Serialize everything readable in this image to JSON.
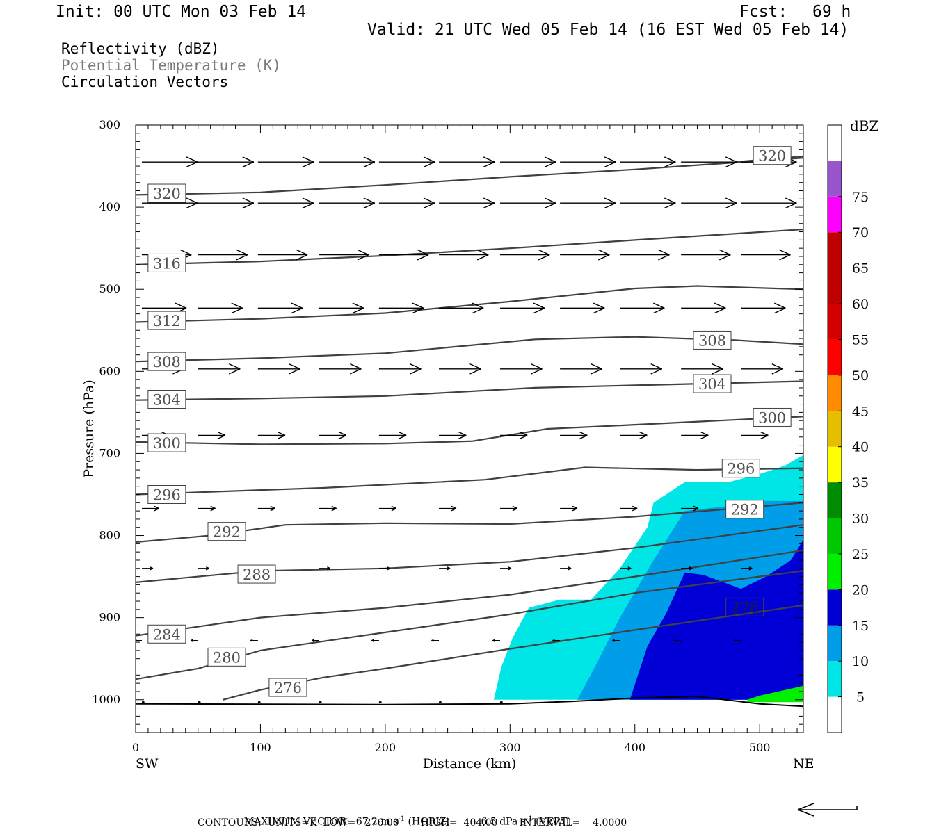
{
  "header": {
    "init": "Init: 00 UTC Mon 03 Feb 14",
    "fcst_label": "Fcst:",
    "fcst_value": "69 h",
    "valid": "Valid: 21 UTC Wed 05 Feb 14 (16 EST Wed 05 Feb 14)"
  },
  "fields": {
    "reflectivity": "Reflectivity (dBZ)",
    "theta": "Potential Temperature (K)",
    "vectors": "Circulation Vectors"
  },
  "footer": {
    "max_vector_label": "MAXIMUM VECTOR:",
    "horiz_value": "67.2",
    "horiz_units": "m s",
    "horiz_note": "(HORIZ)",
    "vert_value": "6.5",
    "vert_units": "dPa s",
    "vert_note": "(VERT)",
    "exponent": "-1",
    "contours": "CONTOURS:  UNITS=K  LOW=   276.00       HIGH=  404.00       INTERVAL=    4.0000"
  },
  "colors": {
    "dbz_5": "#00e6e6",
    "dbz_10": "#009ee8",
    "dbz_15": "#0000d6",
    "dbz_20": "#00f000",
    "dbz_25": "#00c800",
    "dbz_30": "#008c00",
    "dbz_35": "#ffff00",
    "dbz_40": "#e6be00",
    "dbz_45": "#ff8c00",
    "dbz_50": "#ff0000",
    "dbz_55": "#d60000",
    "dbz_60": "#c00000",
    "dbz_65": "#ff00ff",
    "dbz_75": "#9955cc",
    "contour": "#404040"
  },
  "chart_data": {
    "type": "cross-section",
    "xlabel": "Distance (km)",
    "ylabel": "Pressure (hPa)",
    "xlim": [
      0,
      535
    ],
    "ylim": [
      1040,
      300
    ],
    "x_ticks": [
      0,
      100,
      200,
      300,
      400,
      500
    ],
    "y_ticks": [
      300,
      400,
      500,
      600,
      700,
      800,
      900,
      1000
    ],
    "x_end_labels": {
      "left": "SW",
      "right": "NE"
    },
    "colorbar": {
      "title": "dBZ",
      "labels": [
        "5",
        "10",
        "15",
        "20",
        "25",
        "30",
        "35",
        "40",
        "45",
        "50",
        "55",
        "60",
        "65",
        "70",
        "75"
      ],
      "levels": [
        0,
        5,
        10,
        15,
        20,
        25,
        30,
        35,
        40,
        45,
        50,
        55,
        60,
        65,
        70,
        75,
        80
      ],
      "bin_colors": [
        "#ffffff",
        "#00e6e6",
        "#009ee8",
        "#0000d6",
        "#00f000",
        "#00c800",
        "#008c00",
        "#ffff00",
        "#e6be00",
        "#ff8c00",
        "#ff0000",
        "#d60000",
        "#c00000",
        "#c00000",
        "#ff00ff",
        "#9955cc",
        "#ffffff"
      ]
    },
    "reflectivity_regions": [
      {
        "dbz": 5,
        "points": [
          [
            287,
            1000
          ],
          [
            293,
            960
          ],
          [
            302,
            925
          ],
          [
            315,
            888
          ],
          [
            340,
            878
          ],
          [
            365,
            878
          ],
          [
            388,
            840
          ],
          [
            410,
            790
          ],
          [
            415,
            760
          ],
          [
            440,
            735
          ],
          [
            475,
            735
          ],
          [
            500,
            725
          ],
          [
            520,
            715
          ],
          [
            535,
            702
          ],
          [
            535,
            1000
          ],
          [
            287,
            1000
          ]
        ]
      },
      {
        "dbz": 10,
        "points": [
          [
            354,
            1000
          ],
          [
            368,
            960
          ],
          [
            388,
            900
          ],
          [
            415,
            830
          ],
          [
            440,
            770
          ],
          [
            470,
            765
          ],
          [
            500,
            758
          ],
          [
            535,
            758
          ],
          [
            535,
            1000
          ],
          [
            354,
            1000
          ]
        ]
      },
      {
        "dbz": 15,
        "points": [
          [
            396,
            1000
          ],
          [
            410,
            935
          ],
          [
            425,
            895
          ],
          [
            440,
            845
          ],
          [
            455,
            848
          ],
          [
            485,
            865
          ],
          [
            505,
            850
          ],
          [
            525,
            830
          ],
          [
            535,
            805
          ],
          [
            535,
            1000
          ],
          [
            396,
            1000
          ]
        ]
      },
      {
        "dbz": 20,
        "points": [
          [
            490,
            1000
          ],
          [
            500,
            995
          ],
          [
            515,
            990
          ],
          [
            535,
            983
          ],
          [
            535,
            1003
          ],
          [
            490,
            1003
          ]
        ]
      }
    ],
    "theta_contours": [
      {
        "value": 320,
        "points": [
          [
            0,
            385
          ],
          [
            100,
            382
          ],
          [
            200,
            373
          ],
          [
            300,
            363
          ],
          [
            400,
            354
          ],
          [
            535,
            340
          ]
        ],
        "label_at": [
          25,
          383
        ]
      },
      {
        "value": 320,
        "points": [
          [
            480,
            345
          ],
          [
            535,
            338
          ]
        ],
        "label_at": [
          510,
          337
        ]
      },
      {
        "value": 316,
        "points": [
          [
            0,
            470
          ],
          [
            100,
            466
          ],
          [
            200,
            459
          ],
          [
            300,
            450
          ],
          [
            400,
            440
          ],
          [
            535,
            427
          ]
        ],
        "label_at": [
          25,
          468
        ]
      },
      {
        "value": 312,
        "points": [
          [
            0,
            540
          ],
          [
            100,
            536
          ],
          [
            200,
            529
          ],
          [
            300,
            515
          ],
          [
            400,
            499
          ],
          [
            450,
            496
          ],
          [
            535,
            500
          ]
        ],
        "label_at": [
          25,
          538
        ]
      },
      {
        "value": 308,
        "points": [
          [
            0,
            588
          ],
          [
            100,
            584
          ],
          [
            200,
            578
          ],
          [
            320,
            561
          ],
          [
            400,
            558
          ],
          [
            480,
            562
          ],
          [
            535,
            567
          ]
        ],
        "label_at": [
          25,
          588
        ],
        "label2_at": [
          462,
          562
        ]
      },
      {
        "value": 304,
        "points": [
          [
            0,
            635
          ],
          [
            100,
            633
          ],
          [
            200,
            630
          ],
          [
            320,
            620
          ],
          [
            400,
            617
          ],
          [
            535,
            612
          ]
        ],
        "label_at": [
          25,
          634
        ],
        "label2_at": [
          462,
          615
        ]
      },
      {
        "value": 300,
        "points": [
          [
            0,
            686
          ],
          [
            100,
            689
          ],
          [
            200,
            688
          ],
          [
            270,
            685
          ],
          [
            330,
            670
          ],
          [
            400,
            665
          ],
          [
            535,
            655
          ]
        ],
        "label_at": [
          25,
          687
        ],
        "label2_at": [
          510,
          656
        ]
      },
      {
        "value": 296,
        "points": [
          [
            0,
            750
          ],
          [
            150,
            742
          ],
          [
            280,
            732
          ],
          [
            360,
            717
          ],
          [
            450,
            720
          ],
          [
            535,
            718
          ]
        ],
        "label_at": [
          25,
          750
        ],
        "label2_at": [
          485,
          718
        ]
      },
      {
        "value": 292,
        "points": [
          [
            0,
            808
          ],
          [
            60,
            800
          ],
          [
            120,
            787
          ],
          [
            200,
            785
          ],
          [
            300,
            786
          ],
          [
            400,
            777
          ],
          [
            535,
            760
          ]
        ],
        "label_at": [
          73,
          795
        ],
        "label2_at": [
          488,
          768
        ]
      },
      {
        "value": 288,
        "points": [
          [
            0,
            857
          ],
          [
            100,
            843
          ],
          [
            200,
            840
          ],
          [
            300,
            832
          ],
          [
            400,
            815
          ],
          [
            535,
            787
          ]
        ],
        "label_at": [
          97,
          847
        ]
      },
      {
        "value": 284,
        "points": [
          [
            0,
            922
          ],
          [
            100,
            900
          ],
          [
            200,
            888
          ],
          [
            300,
            872
          ],
          [
            400,
            850
          ],
          [
            535,
            818
          ]
        ],
        "label_at": [
          25,
          920
        ]
      },
      {
        "value": 280,
        "points": [
          [
            0,
            975
          ],
          [
            50,
            962
          ],
          [
            100,
            940
          ],
          [
            200,
            918
          ],
          [
            300,
            896
          ],
          [
            400,
            870
          ],
          [
            535,
            843
          ]
        ],
        "label_at": [
          73,
          948
        ]
      },
      {
        "value": 276,
        "points": [
          [
            70,
            1000
          ],
          [
            100,
            988
          ],
          [
            150,
            973
          ],
          [
            200,
            962
          ],
          [
            300,
            938
          ],
          [
            400,
            915
          ],
          [
            535,
            885
          ]
        ],
        "label_at": [
          122,
          985
        ],
        "label2_at": [
          488,
          887
        ]
      }
    ],
    "ground_line": [
      [
        0,
        1005
      ],
      [
        200,
        1006
      ],
      [
        300,
        1005
      ],
      [
        350,
        1002
      ],
      [
        400,
        998
      ],
      [
        450,
        996
      ],
      [
        500,
        1005
      ],
      [
        535,
        1008
      ]
    ],
    "vectors": [
      {
        "pressure": 345,
        "x": [
          5,
          50,
          98,
          147,
          195,
          243,
          292,
          340,
          388,
          437,
          485
        ],
        "u": 45,
        "w": 0
      },
      {
        "pressure": 395,
        "x": [
          5,
          50,
          98,
          147,
          195,
          243,
          292,
          340,
          388,
          437,
          485
        ],
        "u": 45,
        "w": 0
      },
      {
        "pressure": 458,
        "x": [
          5,
          50,
          98,
          147,
          195,
          243,
          292,
          340,
          388,
          437,
          485
        ],
        "u": 40,
        "w": 0
      },
      {
        "pressure": 523,
        "x": [
          5,
          50,
          98,
          147,
          195,
          243,
          292,
          340,
          388,
          437,
          485
        ],
        "u": 36,
        "w": 0
      },
      {
        "pressure": 597,
        "x": [
          5,
          50,
          98,
          147,
          195,
          243,
          292,
          340,
          388,
          437,
          485
        ],
        "u": 34,
        "w": 0
      },
      {
        "pressure": 678,
        "x": [
          5,
          50,
          98,
          147,
          195,
          243,
          292,
          340,
          388,
          437,
          485
        ],
        "u": 22,
        "w": 0
      },
      {
        "pressure": 767,
        "x": [
          5,
          50,
          98,
          147,
          195,
          243,
          292,
          340,
          388,
          437,
          485
        ],
        "u": 14,
        "w": 0
      },
      {
        "pressure": 840,
        "x": [
          5,
          50,
          98,
          147,
          195,
          243,
          292,
          340,
          388,
          437,
          485
        ],
        "u": 9,
        "w": 0
      },
      {
        "pressure": 928,
        "x": [
          5,
          50,
          98,
          147,
          195,
          243,
          292,
          340,
          388,
          437,
          485
        ],
        "u": -6,
        "w": 0
      },
      {
        "pressure": 1003,
        "x": [
          5,
          50,
          98,
          147,
          195,
          243,
          292
        ],
        "u": 2,
        "w": 0
      }
    ]
  }
}
